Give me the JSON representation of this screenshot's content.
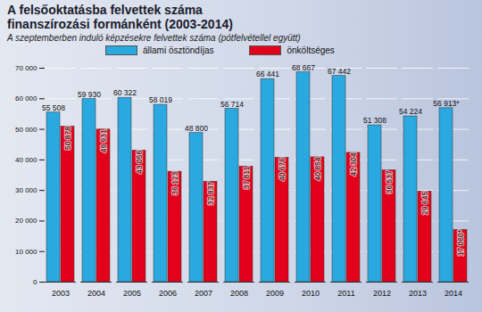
{
  "chart_data": {
    "type": "bar",
    "title": "A felsőoktatásba felvettek száma finanszírozási formánként (2003-2014)",
    "subtitle": "A szeptemberben induló képzésekre felvettek száma (pótfelvétellel együtt)",
    "categories": [
      "2003",
      "2004",
      "2005",
      "2006",
      "2007",
      "2008",
      "2009",
      "2010",
      "2011",
      "2012",
      "2013",
      "2014"
    ],
    "series": [
      {
        "name": "állami ösztöndíjas",
        "color": "#2aa8e0",
        "values": [
          55508,
          59930,
          60322,
          58019,
          48800,
          56714,
          66441,
          68667,
          67442,
          51308,
          54224,
          56913
        ],
        "value_labels": [
          "55 508",
          "59 930",
          "60 322",
          "58 019",
          "48 800",
          "56 714",
          "66 441",
          "68 667",
          "67 442",
          "51 308",
          "54 224",
          "56 913*"
        ]
      },
      {
        "name": "önköltséges",
        "color": "#e3001b",
        "values": [
          50878,
          49931,
          43056,
          36123,
          32837,
          37811,
          40676,
          40854,
          42304,
          36537,
          29645,
          17060
        ],
        "value_labels": [
          "50 878",
          "49 931",
          "43 056",
          "36 123",
          "32 837",
          "37 811",
          "40 676",
          "40 854",
          "42 304",
          "36 537",
          "29 645",
          "17 060*"
        ]
      }
    ],
    "ylim": [
      0,
      70000
    ],
    "yticks": [
      0,
      {
        "value": 10000,
        "label": "10 000"
      },
      {
        "value": 20000,
        "label": "20 000"
      },
      {
        "value": 30000,
        "label": "30 000"
      },
      {
        "value": 40000,
        "label": "40 000"
      },
      {
        "value": 50000,
        "label": "50 000"
      },
      {
        "value": 60000,
        "label": "60 000"
      },
      {
        "value": 70000,
        "label": "70 000"
      }
    ],
    "grid": true,
    "data_labels": true,
    "legend": "top"
  }
}
